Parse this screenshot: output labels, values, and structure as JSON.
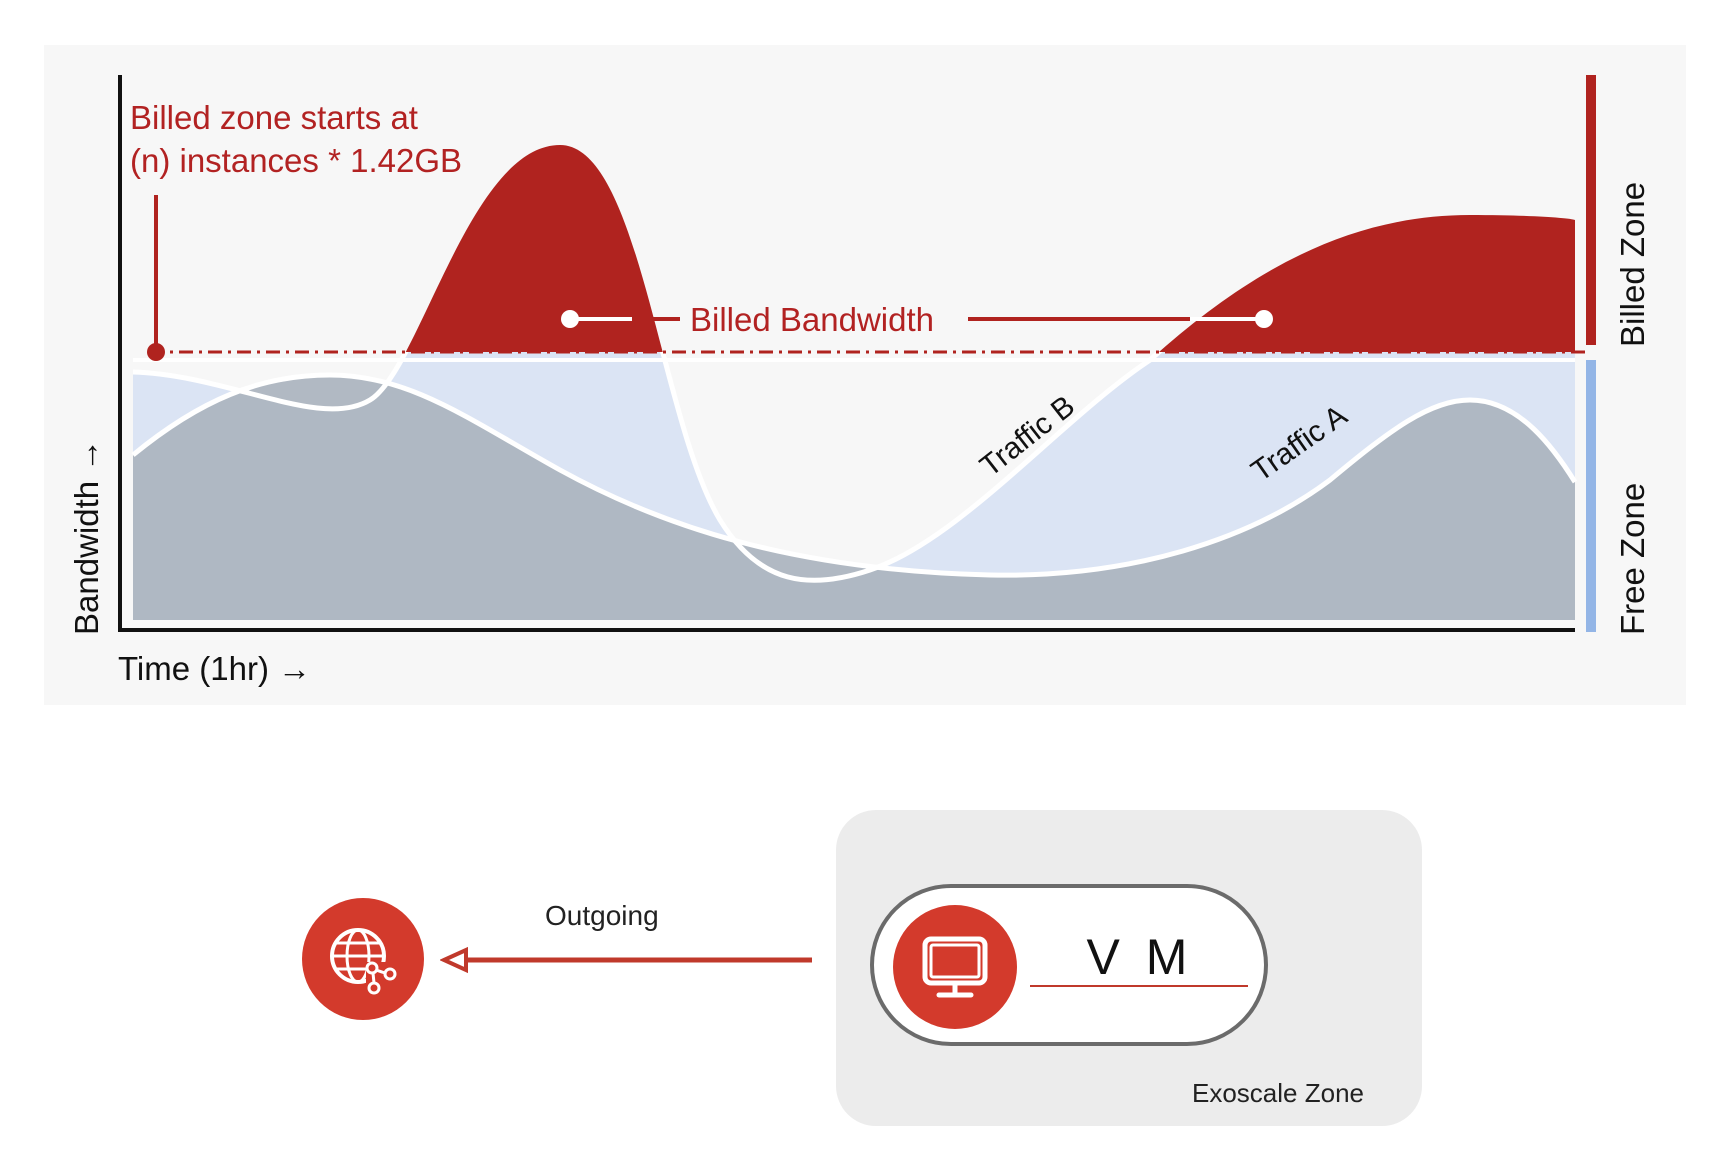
{
  "chart": {
    "billed_zone_note_line1": "Billed zone starts at",
    "billed_zone_note_line2": "(n) instances * 1.42GB",
    "billed_bandwidth_label": "Billed Bandwidth",
    "traffic_a_label": "Traffic A",
    "traffic_b_label": "Traffic B",
    "y_axis_label": "Bandwidth →",
    "x_axis_label": "Time (1hr) →",
    "billed_zone_label": "Billed Zone",
    "free_zone_label": "Free Zone",
    "colors": {
      "billed": "#b0231f",
      "traffic_a": "#adb5c0",
      "traffic_b": "#dbe4f4",
      "free_bar": "#93b5e6",
      "threshold": "#b0231f"
    }
  },
  "diagram": {
    "outgoing_label": "Outgoing",
    "vm_label": "V M",
    "zone_label": "Exoscale Zone",
    "internet_icon": "globe-network-icon",
    "vm_icon": "monitor-icon",
    "accent": "#d33a2c"
  }
}
